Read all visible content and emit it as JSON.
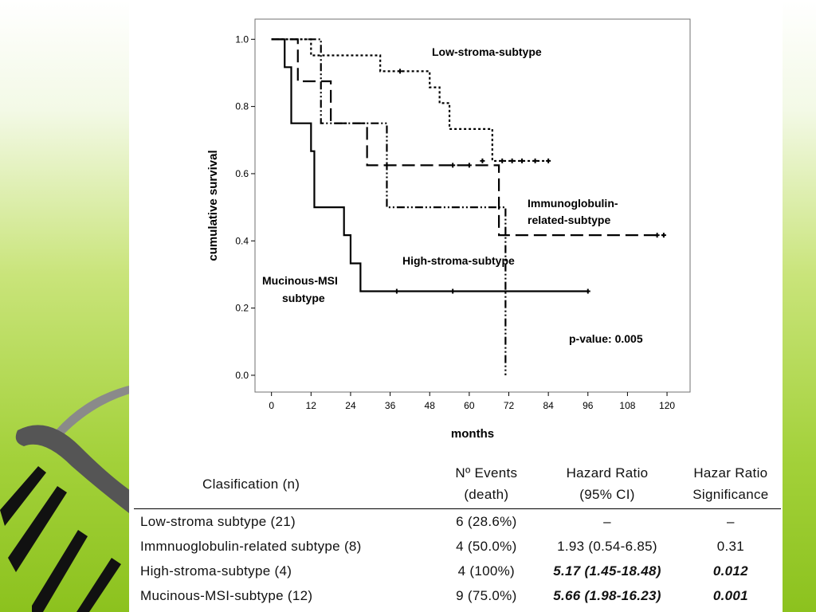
{
  "chart_data": {
    "type": "line",
    "step": true,
    "xlabel": "months",
    "ylabel": "cumulative survival",
    "xlim": [
      -5,
      127
    ],
    "ylim": [
      -0.05,
      1.06
    ],
    "xticks": [
      0,
      12,
      24,
      36,
      48,
      60,
      72,
      84,
      96,
      108,
      120
    ],
    "yticks": [
      0.0,
      0.2,
      0.4,
      0.6,
      0.8,
      1.0
    ],
    "grid": false,
    "series": [
      {
        "name": "Low-stroma-subtype",
        "style": "dotted",
        "x": [
          8,
          12,
          33,
          48,
          51,
          54,
          67,
          84
        ],
        "y": [
          1.0,
          0.952,
          0.905,
          0.857,
          0.81,
          0.733,
          0.638,
          0.638
        ],
        "censored": [
          [
            39,
            0.905
          ],
          [
            64,
            0.638
          ],
          [
            70,
            0.638
          ],
          [
            73,
            0.638
          ],
          [
            76,
            0.638
          ],
          [
            80,
            0.638
          ],
          [
            84,
            0.638
          ]
        ]
      },
      {
        "name": "Immunoglobulin-related-subtype",
        "style": "long-dash",
        "x": [
          3,
          8,
          18,
          29,
          69,
          119
        ],
        "y": [
          1.0,
          0.875,
          0.75,
          0.625,
          0.417,
          0.417
        ],
        "censored": [
          [
            55,
            0.625
          ],
          [
            60,
            0.625
          ],
          [
            117,
            0.417
          ],
          [
            119,
            0.417
          ]
        ]
      },
      {
        "name": "High-stroma-subtype",
        "style": "dash-dot-dot",
        "x": [
          8,
          15,
          35,
          71
        ],
        "y": [
          1.0,
          0.75,
          0.5,
          0.0
        ],
        "censored": []
      },
      {
        "name": "Mucinous-MSI subtype",
        "style": "solid",
        "x": [
          4,
          6,
          12,
          13,
          22,
          24,
          27,
          96
        ],
        "y": [
          0.917,
          0.75,
          0.667,
          0.5,
          0.417,
          0.333,
          0.25,
          0.25
        ],
        "censored": [
          [
            38,
            0.25
          ],
          [
            55,
            0.25
          ],
          [
            96,
            0.25
          ]
        ]
      }
    ],
    "annotations": {
      "low_stroma": "Low-stroma-subtype",
      "immuno_1": "Immunoglobulin-",
      "immuno_2": "related-subtype",
      "high_stroma": "High-stroma-subtype",
      "mucinous_1": "Mucinous-MSI",
      "mucinous_2": "subtype",
      "pvalue": "p-value: 0.005"
    }
  },
  "table": {
    "headers": {
      "clasification": "Clasification (n)",
      "events_1": "Nº Events",
      "events_2": "(death)",
      "hr_1": "Hazard Ratio",
      "hr_2": "(95% CI)",
      "sig_1": "Hazar Ratio",
      "sig_2": "Significance"
    },
    "rows": [
      {
        "name": "Low-stroma subtype (21)",
        "events": "6  (28.6%)",
        "hr": "–",
        "sig": "–",
        "bold": false
      },
      {
        "name": "Immnuoglobulin-related subtype (8)",
        "events": "4  (50.0%)",
        "hr": "1.93 (0.54-6.85)",
        "sig": "0.31",
        "bold": false
      },
      {
        "name": "High-stroma-subtype (4)",
        "events": "4  (100%)",
        "hr": "5.17 (1.45-18.48)",
        "sig": "0.012",
        "bold": true
      },
      {
        "name": "Mucinous-MSI-subtype (12)",
        "events": "9  (75.0%)",
        "hr": "5.66 (1.98-16.23)",
        "sig": "0.001",
        "bold": true
      }
    ]
  },
  "colors": {
    "background_green_top": "#ffffff",
    "background_green_bottom": "#8cc21e",
    "panel": "#ffffff",
    "ink": "#000000"
  }
}
